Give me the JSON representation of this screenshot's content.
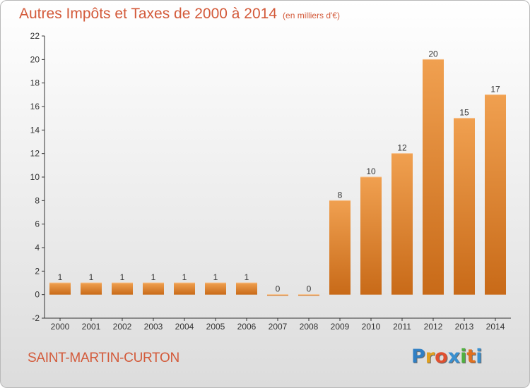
{
  "title": "Autres Impôts et Taxes de 2000 à 2014",
  "unit": "(en milliers d'€)",
  "place": "SAINT-MARTIN-CURTON",
  "logo": {
    "letters": [
      "P",
      "r",
      "o",
      "x",
      "i",
      "t",
      "i"
    ],
    "colors": [
      "#2f7fc4",
      "#e0a020",
      "#e05030",
      "#3a90d0",
      "#50b040",
      "#e07020",
      "#3a90d0"
    ]
  },
  "colors": {
    "bar": "#f0a050",
    "bar_dark": "#c86a18",
    "text": "#d35a3a"
  },
  "chart_data": {
    "type": "bar",
    "title": "Autres Impôts et Taxes de 2000 à 2014",
    "ylabel": "",
    "xlabel": "",
    "ylim": [
      -2,
      22
    ],
    "yticks": [
      -2,
      0,
      2,
      4,
      6,
      8,
      10,
      12,
      14,
      16,
      18,
      20,
      22
    ],
    "grid": false,
    "categories": [
      "2000",
      "2001",
      "2002",
      "2003",
      "2004",
      "2005",
      "2006",
      "2007",
      "2008",
      "2009",
      "2010",
      "2011",
      "2012",
      "2013",
      "2014"
    ],
    "values": [
      1,
      1,
      1,
      1,
      1,
      1,
      1,
      0,
      0,
      8,
      10,
      12,
      20,
      15,
      17
    ]
  }
}
